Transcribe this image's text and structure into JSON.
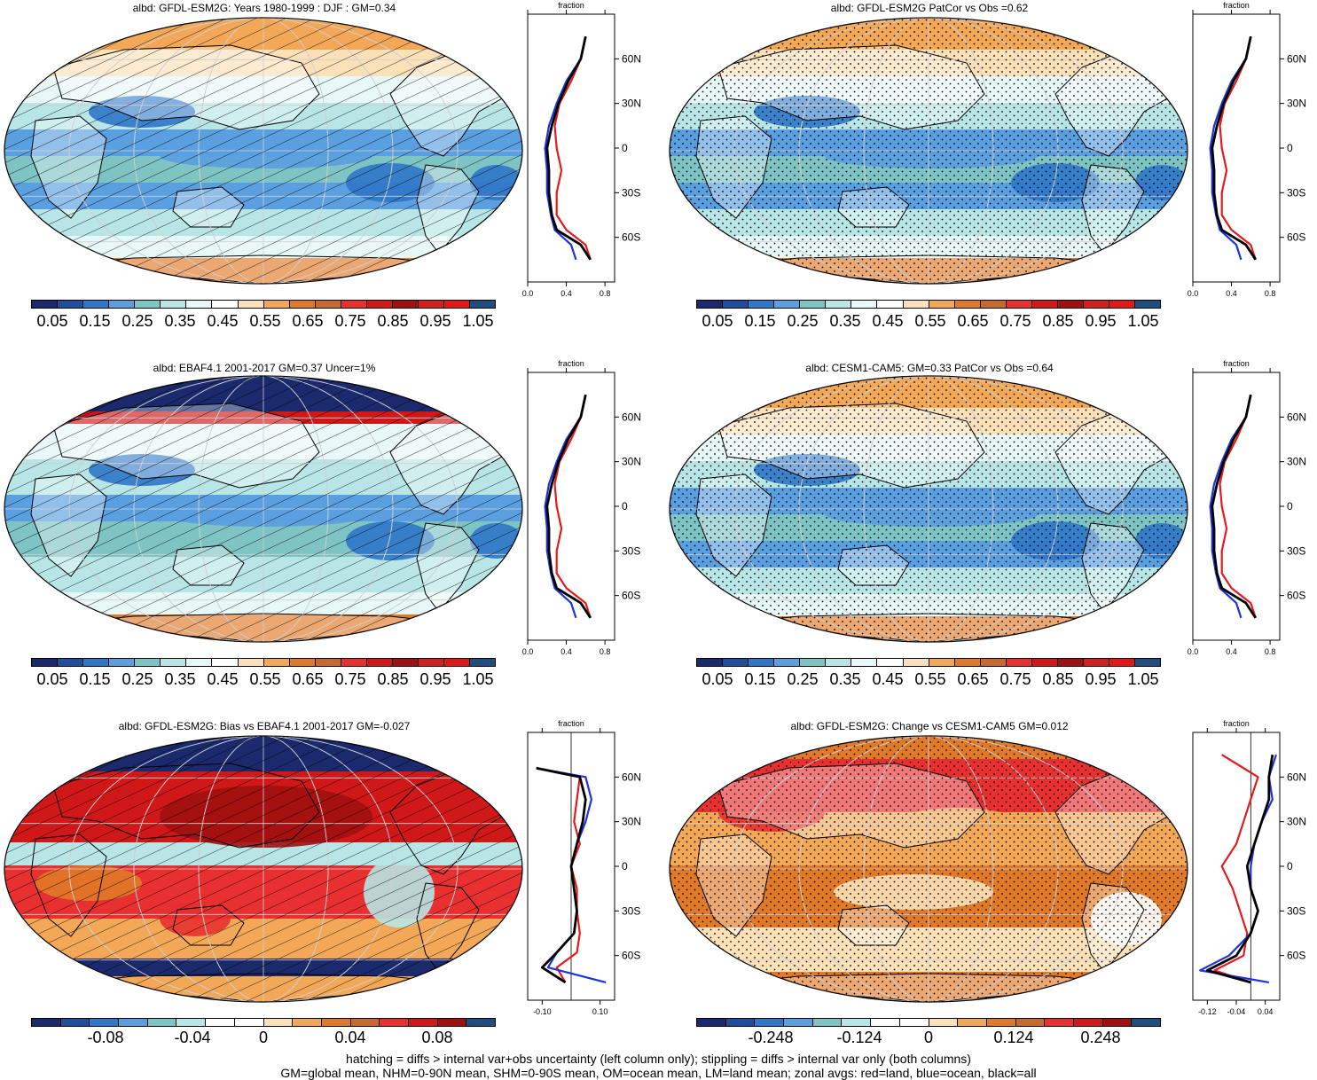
{
  "chart_data": [
    {
      "type": "heatmap",
      "title": "albd: GFDL-ESM2G: Years 1980-1999 : DJF : GM=0.34",
      "colorbar_ticks": [
        "0.05",
        "0.15",
        "0.25",
        "0.35",
        "0.45",
        "0.55",
        "0.65",
        "0.75",
        "0.85",
        "0.95",
        "1.05"
      ],
      "overlay": "hatching",
      "zonal": {
        "title": "fraction",
        "x_ticks": [
          "0.0",
          "0.4",
          "0.8"
        ],
        "xlim": [
          0,
          0.9
        ],
        "lat_ticks": [
          "60N",
          "30N",
          "0",
          "30S",
          "60S"
        ],
        "ylim": [
          -90,
          90
        ]
      }
    },
    {
      "type": "heatmap",
      "title": "albd: GFDL-ESM2G PatCor vs Obs =0.62",
      "colorbar_ticks": [
        "0.05",
        "0.15",
        "0.25",
        "0.35",
        "0.45",
        "0.55",
        "0.65",
        "0.75",
        "0.85",
        "0.95",
        "1.05"
      ],
      "overlay": "stippling",
      "zonal": {
        "title": "fraction",
        "x_ticks": [
          "0.0",
          "0.4",
          "0.8"
        ],
        "xlim": [
          0,
          0.9
        ],
        "lat_ticks": [
          "60N",
          "30N",
          "0",
          "30S",
          "60S"
        ],
        "ylim": [
          -90,
          90
        ]
      }
    },
    {
      "type": "heatmap",
      "title": "albd: EBAF4.1 2001-2017 GM=0.37 Uncer=1%",
      "colorbar_ticks": [
        "0.05",
        "0.15",
        "0.25",
        "0.35",
        "0.45",
        "0.55",
        "0.65",
        "0.75",
        "0.85",
        "0.95",
        "1.05"
      ],
      "overlay": "hatching",
      "zonal": {
        "title": "fraction",
        "x_ticks": [
          "0.0",
          "0.4",
          "0.8"
        ],
        "xlim": [
          0,
          0.9
        ],
        "lat_ticks": [
          "60N",
          "30N",
          "0",
          "30S",
          "60S"
        ],
        "ylim": [
          -90,
          90
        ]
      }
    },
    {
      "type": "heatmap",
      "title": "albd: CESM1-CAM5: GM=0.33 PatCor vs Obs =0.64",
      "colorbar_ticks": [
        "0.05",
        "0.15",
        "0.25",
        "0.35",
        "0.45",
        "0.55",
        "0.65",
        "0.75",
        "0.85",
        "0.95",
        "1.05"
      ],
      "overlay": "stippling",
      "zonal": {
        "title": "fraction",
        "x_ticks": [
          "0.0",
          "0.4",
          "0.8"
        ],
        "xlim": [
          0,
          0.9
        ],
        "lat_ticks": [
          "60N",
          "30N",
          "0",
          "30S",
          "60S"
        ],
        "ylim": [
          -90,
          90
        ]
      }
    },
    {
      "type": "heatmap",
      "title": "albd: GFDL-ESM2G: Bias vs EBAF4.1 2001-2017 GM=-0.027",
      "colorbar_ticks": [
        "-0.08",
        "-0.04",
        "0",
        "0.04",
        "0.08"
      ],
      "overlay": "hatching",
      "zonal": {
        "title": "fraction",
        "x_ticks": [
          "-0.10",
          "0.10"
        ],
        "xlim": [
          -0.15,
          0.15
        ],
        "lat_ticks": [
          "60N",
          "30N",
          "0",
          "30S",
          "60S"
        ],
        "ylim": [
          -90,
          90
        ]
      }
    },
    {
      "type": "heatmap",
      "title": "albd: GFDL-ESM2G: Change vs CESM1-CAM5 GM=0.012",
      "colorbar_ticks": [
        "-0.248",
        "-0.124",
        "0",
        "0.124",
        "0.248"
      ],
      "overlay": "stippling",
      "zonal": {
        "title": "fraction",
        "x_ticks": [
          "-0.12",
          "-0.04",
          "0.04"
        ],
        "xlim": [
          -0.16,
          0.08
        ],
        "lat_ticks": [
          "60N",
          "30N",
          "0",
          "30S",
          "60S"
        ],
        "ylim": [
          -90,
          90
        ]
      }
    }
  ],
  "palette": [
    "#1a2a6c",
    "#1f4e9c",
    "#2f77c8",
    "#5a9fe0",
    "#7fc4c4",
    "#b8e6e6",
    "#e8f8f8",
    "#ffffff",
    "#fbe0b8",
    "#f3a858",
    "#e07a28",
    "#c86a30",
    "#e83030",
    "#d01818",
    "#a01010",
    "#d02020",
    "#e01818",
    "#1e4e80"
  ],
  "diverging_palette": [
    "#1a2a6c",
    "#1f4e9c",
    "#2f77c8",
    "#5a9fe0",
    "#7fc4c4",
    "#b8e6e6",
    "#ffffff",
    "#ffffff",
    "#fbe0b8",
    "#f3a858",
    "#e07a28",
    "#c86a30",
    "#e83030",
    "#d01818",
    "#a01010",
    "#1e4e80"
  ],
  "zonal_legend": {
    "land_color": "#e41a1c",
    "ocean_color": "#1a33e0",
    "all_color": "#000000"
  },
  "footer": {
    "line1": "hatching = diffs > internal var+obs uncertainty (left column only); stippling = diffs > internal var only (both columns)",
    "line2": "GM=global mean, NHM=0-90N mean, SHM=0-90S mean, OM=ocean mean, LM=land mean; zonal avgs: red=land, blue=ocean, black=all"
  }
}
